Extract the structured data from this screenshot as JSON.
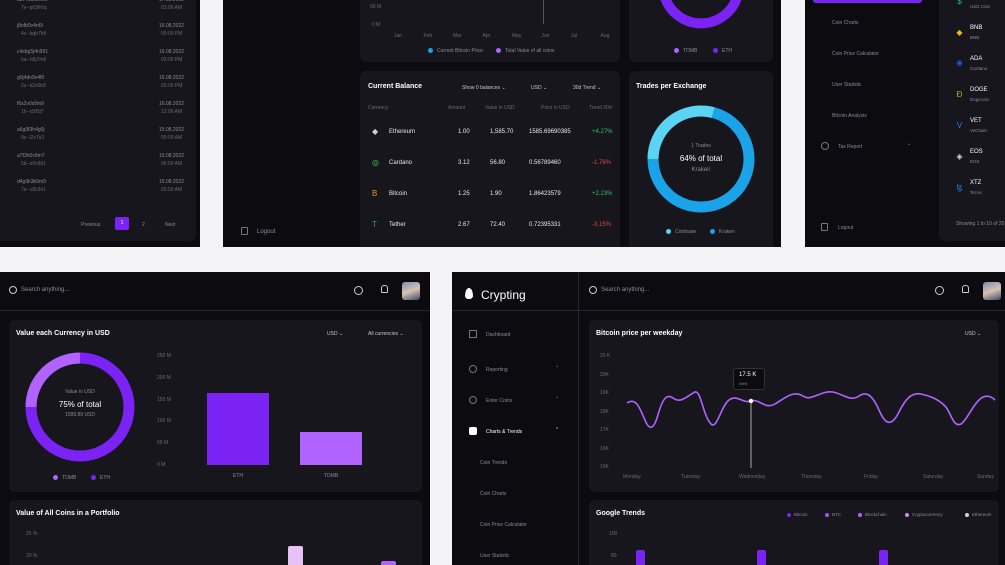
{
  "colors": {
    "purple": "#7b22f5",
    "light_purple": "#b063ff",
    "cyan": "#1aa3e8",
    "light_cyan": "#5ad4f2",
    "pink": "#e7c3f5"
  },
  "panel_tl": {
    "rows": [
      {
        "id1": "a8v7bdc5v0vl",
        "id2": "7v--p03fr6q",
        "date": "17.08.2022",
        "time": "03:00 AM"
      },
      {
        "id1": "j8nfb0v4nf9",
        "id2": "4c--bgb7h9",
        "date": "16.08.2022",
        "time": "09:00 PM"
      },
      {
        "id1": "c4sbg5j4n991",
        "id2": "6a--h8j7m6",
        "date": "16.08.2022",
        "time": "03:00 PM"
      },
      {
        "id1": "g0j4dn9v4f0",
        "id2": "2z--k2v6b9",
        "date": "16.08.2022",
        "time": "03:00 PM"
      },
      {
        "id1": "f6s2v0s0m9",
        "id2": "1h--d3f5j7",
        "date": "16.08.2022",
        "time": "12:00 AM"
      },
      {
        "id1": "a6g9f3h4g0j",
        "id2": "9c--l2v7s3",
        "date": "15.08.2022",
        "time": "09:00 AM"
      },
      {
        "id1": "a7f3h0v9m7",
        "id2": "5b--z0v9b1",
        "date": "15.08.2022",
        "time": "06:00 AM"
      },
      {
        "id1": "d4g9k3b9m9",
        "id2": "7e--c8v3n1",
        "date": "15.08.2022",
        "time": "03:00 AM"
      }
    ],
    "pagination": {
      "previous": "Previous",
      "page1": "1",
      "page2": "2",
      "next": "Next"
    }
  },
  "panel_tc": {
    "line_chart": {
      "y_labels": [
        "50 M",
        "0 M"
      ],
      "x_labels": [
        "Jan",
        "Feb",
        "Mar",
        "Apr",
        "May",
        "Jun",
        "Jul",
        "Aug"
      ],
      "legend": [
        "Current Bitcoin Price",
        "Total Value of all coins"
      ]
    },
    "donut_top": {
      "legend": [
        "TOMB",
        "ETH"
      ]
    },
    "logout": "Logout",
    "balance": {
      "title": "Current Balance",
      "filters": [
        "Show 0 balances",
        "USD",
        "30d Trend"
      ],
      "headers": [
        "Currency",
        "Amount",
        "Value in USD",
        "Price in USD",
        "Trend 30d"
      ],
      "rows": [
        {
          "name": "Ethereum",
          "amount": "1.00",
          "value": "1,585.70",
          "price": "1585.69690385",
          "trend": "+4.27%"
        },
        {
          "name": "Cardano",
          "amount": "3.12",
          "value": "56.80",
          "price": "0.56789460",
          "trend": "-1.76%"
        },
        {
          "name": "Bitcoin",
          "amount": "1.25",
          "value": "1.90",
          "price": "1.86423579",
          "trend": "+2.23%"
        },
        {
          "name": "Tether",
          "amount": "2.67",
          "value": "72.40",
          "price": "0.72395331",
          "trend": "-3.15%"
        }
      ]
    },
    "trades": {
      "title": "Trades per Exchange",
      "center_top": "1 Trades",
      "center_main": "64% of total",
      "center_sub": "Kraken",
      "legend": [
        "Coinbase",
        "Kraken"
      ]
    }
  },
  "panel_tr": {
    "menu": [
      "Coin Charts",
      "Coin Price Calculator",
      "User Statistic",
      "Bitcoin Analysis",
      "Tax Report"
    ],
    "logout": "Logout",
    "coins": [
      {
        "sym": "",
        "name": "USD Coin"
      },
      {
        "sym": "BNB",
        "name": "BNB"
      },
      {
        "sym": "ADA",
        "name": "Cardano"
      },
      {
        "sym": "DOGE",
        "name": "Dogecoin"
      },
      {
        "sym": "VET",
        "name": "VeChain"
      },
      {
        "sym": "EOS",
        "name": "EOS"
      },
      {
        "sym": "XTZ",
        "name": "Tezos"
      }
    ],
    "showing": "Showing 1 to 10 of 20"
  },
  "panel_bl": {
    "search_placeholder": "Search anything...",
    "value_card": {
      "title": "Value each Currency in USD",
      "filters": [
        "USD",
        "All currencies"
      ],
      "donut_label": "Value in USD",
      "donut_main": "75% of total",
      "donut_sub": "1589.89 USD",
      "legend": [
        "TOMB",
        "ETH"
      ],
      "y_labels": [
        "250 M",
        "200 M",
        "150 M",
        "100 M",
        "50 M",
        "0 M"
      ],
      "bars": [
        {
          "label": "ETH",
          "value": 165
        },
        {
          "label": "TOMB",
          "value": 75
        }
      ],
      "ylim": [
        0,
        250
      ]
    },
    "portfolio": {
      "title": "Value of All Coins in a Portfolio",
      "y_labels": [
        "25 %",
        "20 %"
      ]
    }
  },
  "panel_br": {
    "brand": "Crypting",
    "search_placeholder": "Search anything...",
    "nav": [
      {
        "label": "Dashboard",
        "icon": "grid-icon"
      },
      {
        "label": "Reporting",
        "icon": "pie-icon"
      },
      {
        "label": "Enter Coins",
        "icon": "coin-icon"
      },
      {
        "label": "Charts & Trends",
        "icon": "chart-icon"
      }
    ],
    "subnav": [
      "Coin Trends",
      "Coin Charts",
      "Coin Price Calculator",
      "User Statistic"
    ],
    "btc_weekday": {
      "title": "Bitcoin price per weekday",
      "filter": "USD",
      "y_labels": [
        "20 K",
        "20K",
        "19K",
        "18K",
        "17K",
        "16K",
        "15K"
      ],
      "x_labels": [
        "Monday",
        "Tuesday",
        "Wednesday",
        "Thursday",
        "Friday",
        "Saturday",
        "Sunday"
      ],
      "tooltip_value": "17.5 K",
      "tooltip_day": "Wed"
    },
    "google_trends": {
      "title": "Google Trends",
      "legend": [
        "Bitcoin",
        "BTC",
        "Blockchain",
        "Cryptocurrency",
        "Ethereum"
      ],
      "y_labels": [
        "100",
        "80"
      ]
    }
  }
}
